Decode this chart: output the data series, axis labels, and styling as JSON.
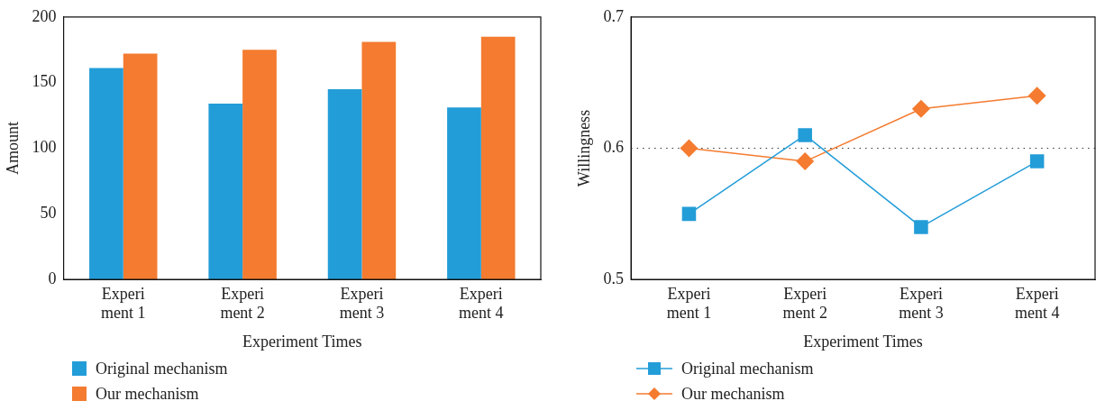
{
  "chart_data": [
    {
      "type": "bar",
      "categories": [
        "Experi\nment 1",
        "Experi\nment 2",
        "Experi\nment 3",
        "Experi\nment 4"
      ],
      "xlabel": "Experiment Times",
      "ylabel": "Amount",
      "ylim": [
        0,
        200
      ],
      "yticks": [
        0,
        50,
        100,
        150,
        200
      ],
      "legend": "bottom left",
      "series": [
        {
          "name": "Original mechanism",
          "color": "#239dd8",
          "values": [
            161,
            134,
            145,
            131
          ]
        },
        {
          "name": "Our mechanism",
          "color": "#f47b2f",
          "values": [
            172,
            175,
            181,
            185
          ]
        }
      ]
    },
    {
      "type": "line",
      "categories": [
        "Experi\nment 1",
        "Experi\nment 2",
        "Experi\nment 3",
        "Experi\nment 4"
      ],
      "xlabel": "Experiment Times",
      "ylabel": "Willingness",
      "ylim": [
        0.5,
        0.7
      ],
      "yticks": [
        0.5,
        0.6,
        0.7
      ],
      "legend": "bottom left",
      "ref_lines": [
        {
          "axis": "y",
          "value": 0.6,
          "color": "#333333",
          "line_style": "dotted"
        }
      ],
      "series": [
        {
          "name": "Original mechanism",
          "color": "#239dd8",
          "marker": "square",
          "values": [
            0.55,
            0.61,
            0.54,
            0.59
          ]
        },
        {
          "name": "Our mechanism",
          "color": "#f47b2f",
          "marker": "diamond",
          "values": [
            0.6,
            0.59,
            0.63,
            0.64
          ]
        }
      ]
    }
  ]
}
